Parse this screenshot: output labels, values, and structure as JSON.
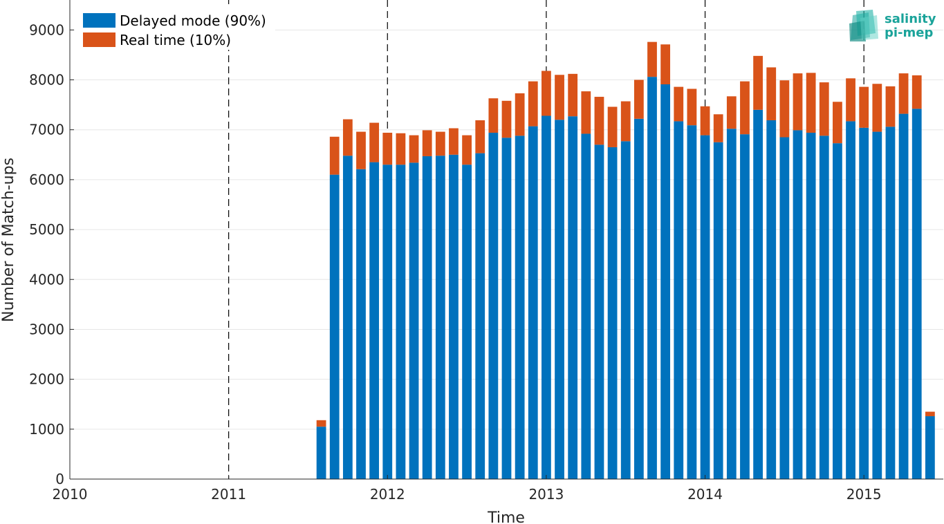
{
  "chart_data": {
    "type": "bar",
    "stacked": true,
    "xlabel": "Time",
    "ylabel": "Number of Match-ups",
    "x_ticks": [
      "2010",
      "2011",
      "2012",
      "2013",
      "2014",
      "2015"
    ],
    "y_ticks": [
      0,
      1000,
      2000,
      3000,
      4000,
      5000,
      6000,
      7000,
      8000,
      9000
    ],
    "xlim": [
      "2010-01",
      "2015-07"
    ],
    "ylim": [
      0,
      9600
    ],
    "grid": true,
    "year_separators": [
      "2011",
      "2012",
      "2013",
      "2014",
      "2015"
    ],
    "legend_position": "top-left",
    "categories": [
      "2011-08",
      "2011-09",
      "2011-10",
      "2011-11",
      "2011-12",
      "2012-01",
      "2012-02",
      "2012-03",
      "2012-04",
      "2012-05",
      "2012-06",
      "2012-07",
      "2012-08",
      "2012-09",
      "2012-10",
      "2012-11",
      "2012-12",
      "2013-01",
      "2013-02",
      "2013-03",
      "2013-04",
      "2013-05",
      "2013-06",
      "2013-07",
      "2013-08",
      "2013-09",
      "2013-10",
      "2013-11",
      "2013-12",
      "2014-01",
      "2014-02",
      "2014-03",
      "2014-04",
      "2014-05",
      "2014-06",
      "2014-07",
      "2014-08",
      "2014-09",
      "2014-10",
      "2014-11",
      "2014-12",
      "2015-01",
      "2015-02",
      "2015-03",
      "2015-04",
      "2015-05",
      "2015-06"
    ],
    "series": [
      {
        "name": "Delayed mode (90%)",
        "color": "#0072BD",
        "values": [
          1050,
          6100,
          6480,
          6210,
          6350,
          6300,
          6300,
          6340,
          6470,
          6480,
          6500,
          6300,
          6530,
          6940,
          6840,
          6880,
          7070,
          7280,
          7200,
          7270,
          6920,
          6700,
          6650,
          6770,
          7220,
          8060,
          7910,
          7170,
          7090,
          6890,
          6750,
          7020,
          6910,
          7400,
          7190,
          6850,
          6990,
          6940,
          6880,
          6730,
          7170,
          7040,
          6960,
          7060,
          7320,
          7420,
          1260
        ]
      },
      {
        "name": "Real time (10%)",
        "color": "#D95319",
        "values": [
          130,
          760,
          730,
          750,
          790,
          640,
          630,
          550,
          520,
          480,
          530,
          590,
          660,
          690,
          740,
          850,
          900,
          900,
          900,
          850,
          850,
          960,
          810,
          800,
          780,
          700,
          800,
          690,
          730,
          580,
          560,
          650,
          1060,
          1080,
          1060,
          1140,
          1140,
          1200,
          1070,
          830,
          860,
          820,
          960,
          810,
          810,
          670,
          90
        ]
      }
    ]
  },
  "logo": {
    "line1": "salinity",
    "line2": "pi-mep",
    "color": "#1aa39a"
  }
}
